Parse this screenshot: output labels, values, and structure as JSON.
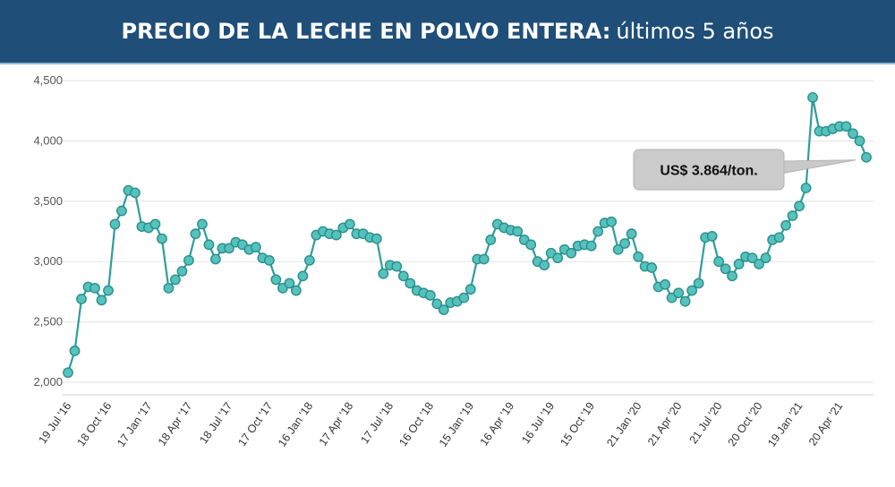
{
  "title": {
    "bold": "PRECIO DE LA LECHE EN POLVO ENTERA:",
    "rest": "últimos 5 años"
  },
  "chart_data": {
    "type": "line",
    "ylim": [
      2000,
      4500
    ],
    "yticks": [
      "2,000",
      "2,500",
      "3,000",
      "3,500",
      "4,000",
      "4,500"
    ],
    "ytick_values": [
      2000,
      2500,
      3000,
      3500,
      4000,
      4500
    ],
    "xtick_labels": [
      "19 Jul '16",
      "18 Oct '16",
      "17 Jan '17",
      "18 Apr '17",
      "18 Jul '17",
      "17 Oct '17",
      "16 Jan '18",
      "17 Apr '18",
      "17 Jul '18",
      "16 Oct '18",
      "15 Jan '19",
      "16 Apr '19",
      "16 Jul '19",
      "15 Oct '19",
      "21 Jan '20",
      "21 Apr '20",
      "21 Jul '20",
      "20 Oct '20",
      "19 Jan '21",
      "20 Apr '21"
    ],
    "xtick_index": [
      0,
      6,
      12,
      18,
      24,
      30,
      36,
      42,
      48,
      54,
      60,
      66,
      72,
      78,
      85,
      91,
      97,
      103,
      109,
      115
    ],
    "grid": true,
    "line_color": "#2e9e9a",
    "marker_color": "#56c2bd",
    "values": [
      2080,
      2260,
      2690,
      2790,
      2780,
      2680,
      2760,
      3310,
      3420,
      3590,
      3570,
      3290,
      3280,
      3310,
      3190,
      2780,
      2850,
      2920,
      3010,
      3230,
      3310,
      3140,
      3020,
      3110,
      3110,
      3160,
      3140,
      3100,
      3120,
      3030,
      3010,
      2850,
      2780,
      2820,
      2760,
      2880,
      3010,
      3220,
      3250,
      3230,
      3220,
      3280,
      3310,
      3230,
      3230,
      3200,
      3190,
      2900,
      2970,
      2960,
      2880,
      2820,
      2760,
      2740,
      2720,
      2650,
      2600,
      2660,
      2670,
      2700,
      2770,
      3020,
      3020,
      3180,
      3310,
      3280,
      3260,
      3250,
      3180,
      3140,
      3000,
      2970,
      3070,
      3030,
      3100,
      3070,
      3130,
      3140,
      3130,
      3250,
      3320,
      3330,
      3100,
      3150,
      3230,
      3040,
      2960,
      2950,
      2790,
      2810,
      2700,
      2740,
      2670,
      2760,
      2820,
      3200,
      3210,
      3000,
      2940,
      2880,
      2980,
      3040,
      3030,
      2980,
      3030,
      3180,
      3200,
      3300,
      3380,
      3460,
      3610,
      4360,
      4080,
      4080,
      4100,
      4120,
      4120,
      4060,
      4000,
      3864
    ],
    "callout": {
      "text": "US$ 3.864/ton."
    }
  }
}
